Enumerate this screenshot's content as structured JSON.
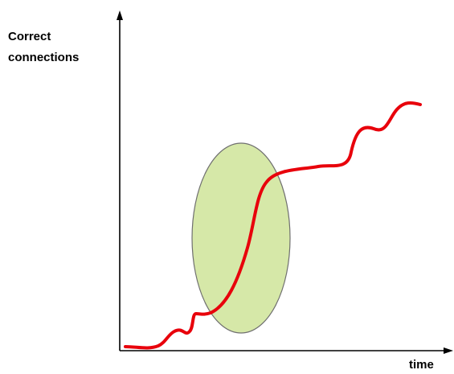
{
  "chart_data": {
    "type": "line",
    "title": "",
    "xlabel": "time",
    "ylabel": "Correct\nconnections",
    "grid": false,
    "legend": "none",
    "series": [
      {
        "name": "",
        "color": "#e8000b",
        "shape": "wavy rising curve with a steep middle segment and small step-like bumps"
      }
    ],
    "annotations": [
      {
        "type": "ellipse",
        "fill": "#d6e8a8",
        "stroke": "#6f6f6f",
        "meaning": "highlighted steep increase region"
      }
    ]
  }
}
